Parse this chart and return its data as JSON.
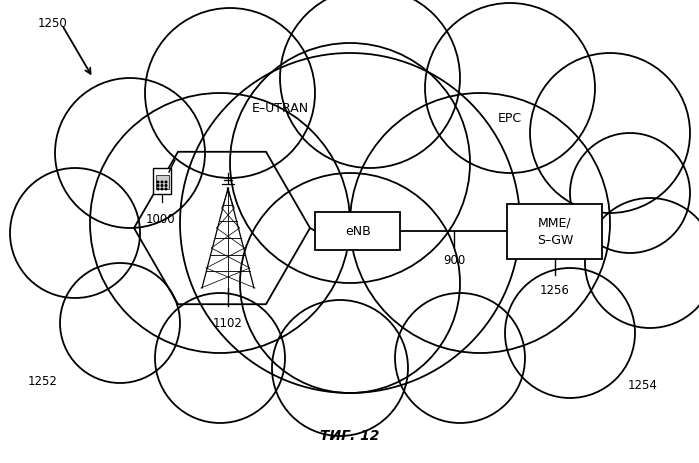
{
  "title": "ΤИГ. 12",
  "background_color": "#ffffff",
  "label_1250": "1250",
  "label_1252": "1252",
  "label_1254": "1254",
  "label_1256": "1256",
  "label_1102": "1102",
  "label_1000": "1000",
  "label_900": "900",
  "label_eutran": "E–UTRAN",
  "label_epc": "EPC",
  "label_enb": "eNB",
  "label_mme": "MME/\nS–GW",
  "cloud_color": "#000000",
  "line_color": "#000000",
  "font_size_labels": 8.5,
  "font_size_title": 10,
  "font_size_box": 9,
  "font_size_region": 9,
  "dpi": 100,
  "fig_w": 6.99,
  "fig_h": 4.64
}
